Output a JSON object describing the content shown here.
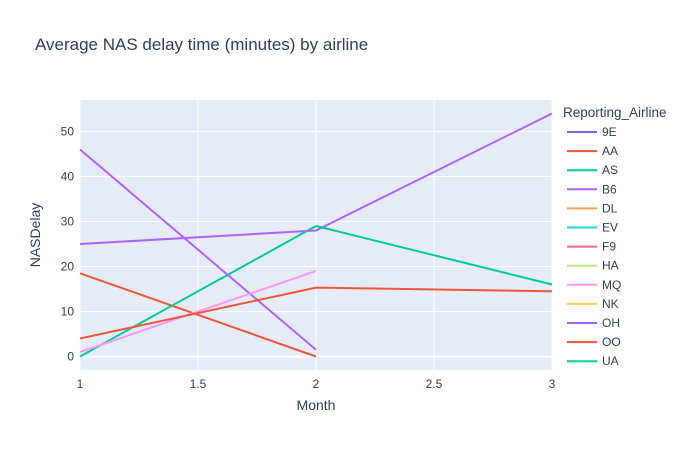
{
  "chart_data": {
    "type": "line",
    "title": "Average NAS delay time (minutes) by airline",
    "xlabel": "Month",
    "ylabel": "NASDelay",
    "xlim": [
      1,
      3
    ],
    "ylim": [
      -3,
      57
    ],
    "xticks": [
      1,
      1.5,
      2,
      2.5,
      3
    ],
    "xtick_labels": [
      "1",
      "1.5",
      "2",
      "2.5",
      "3"
    ],
    "yticks": [
      0,
      10,
      20,
      30,
      40,
      50
    ],
    "ytick_labels": [
      "0",
      "10",
      "20",
      "30",
      "40",
      "50"
    ],
    "grid": true,
    "legend_title": "Reporting_Airline",
    "legend_position": "right",
    "series": [
      {
        "name": "9E",
        "color": "#636efa",
        "points": []
      },
      {
        "name": "AA",
        "color": "#EF553B",
        "points": [
          [
            1,
            18.5
          ],
          [
            2,
            0
          ]
        ]
      },
      {
        "name": "AS",
        "color": "#00cc96",
        "points": [
          [
            1,
            0
          ],
          [
            2,
            29
          ]
        ]
      },
      {
        "name": "B6",
        "color": "#ab63fa",
        "points": [
          [
            1,
            46
          ],
          [
            2,
            1.5
          ]
        ]
      },
      {
        "name": "DL",
        "color": "#FFA15A",
        "points": []
      },
      {
        "name": "EV",
        "color": "#19d3f3",
        "points": []
      },
      {
        "name": "F9",
        "color": "#FF6692",
        "points": []
      },
      {
        "name": "HA",
        "color": "#B6E880",
        "points": []
      },
      {
        "name": "MQ",
        "color": "#FF97FF",
        "points": [
          [
            1,
            1
          ],
          [
            2,
            19
          ]
        ]
      },
      {
        "name": "NK",
        "color": "#FECB52",
        "points": []
      },
      {
        "name": "OH",
        "color": "#ab63fa",
        "points": [
          [
            1,
            25
          ],
          [
            2,
            28
          ],
          [
            3,
            54
          ]
        ]
      },
      {
        "name": "OO",
        "color": "#EF553B",
        "points": [
          [
            1,
            4
          ],
          [
            2,
            15.3
          ],
          [
            3,
            14.5
          ]
        ]
      },
      {
        "name": "UA",
        "color": "#00cc96",
        "points": [
          [
            2,
            29
          ],
          [
            3,
            16
          ]
        ]
      }
    ]
  }
}
